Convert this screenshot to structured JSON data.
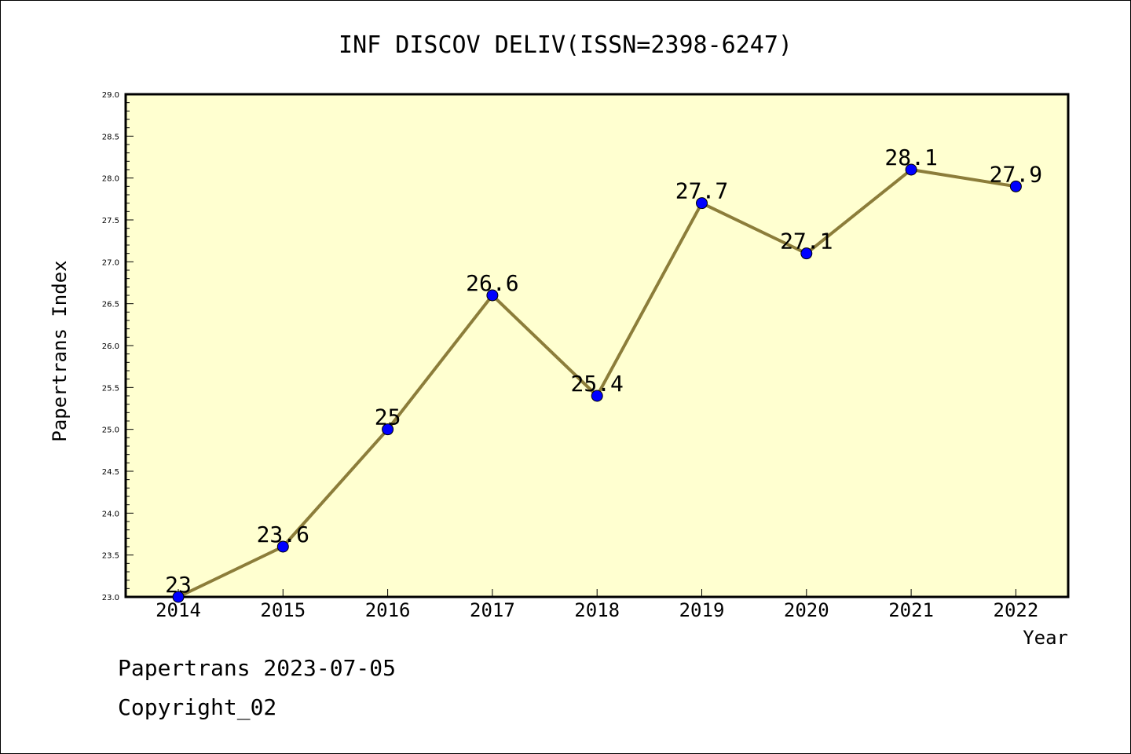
{
  "chart_data": {
    "type": "line",
    "title": "INF DISCOV DELIV(ISSN=2398-6247)",
    "xlabel": "Year",
    "ylabel": "Papertrans Index",
    "categories": [
      "2014",
      "2015",
      "2016",
      "2017",
      "2018",
      "2019",
      "2020",
      "2021",
      "2022"
    ],
    "series": [
      {
        "values": [
          23,
          23.6,
          25,
          26.6,
          25.4,
          27.7,
          27.1,
          28.1,
          27.9
        ]
      }
    ],
    "data_labels": [
      "23",
      "23.6",
      "25",
      "26.6",
      "25.4",
      "27.7",
      "27.1",
      "28.1",
      "27.9"
    ],
    "ylim": [
      23.0,
      29.0
    ],
    "y_ticks": [
      "23.0",
      "23.5",
      "24.0",
      "24.5",
      "25.0",
      "25.5",
      "26.0",
      "26.5",
      "27.0",
      "27.5",
      "28.0",
      "28.5",
      "29.0"
    ],
    "grid": false,
    "legend": "none",
    "colors": {
      "plot_background": "#ffffd0",
      "line": "#8c7d3a",
      "marker": "#0000ff"
    }
  },
  "footer": {
    "line1": "Papertrans 2023-07-05",
    "line2": "Copyright_02"
  }
}
